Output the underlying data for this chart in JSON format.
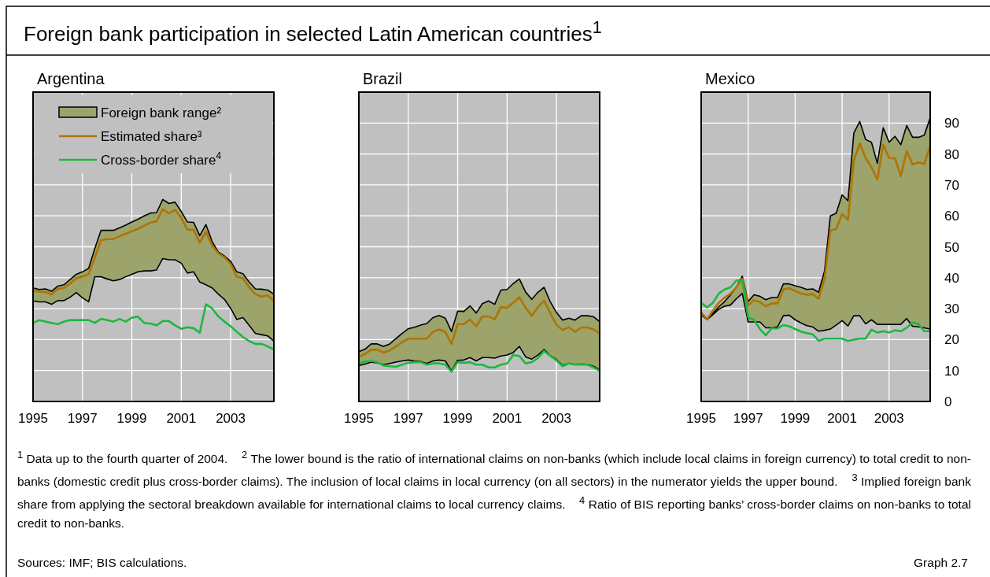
{
  "chart_data": [
    {
      "type": "other",
      "title": "Foreign bank participation in selected Latin American countries$^{1}$"
    },
    {
      "type": "line",
      "title": "Argentina",
      "x": [
        1995,
        1995.25,
        1995.5,
        1995.75,
        1996,
        1996.25,
        1996.5,
        1996.75,
        1997,
        1997.25,
        1997.5,
        1997.75,
        1998,
        1998.25,
        1998.5,
        1998.75,
        1999,
        1999.25,
        1999.5,
        1999.75,
        2000,
        2000.25,
        2000.5,
        2000.75,
        2001,
        2001.25,
        2001.5,
        2001.75,
        2002,
        2002.25,
        2002.5,
        2002.75,
        2003,
        2003.25,
        2003.5,
        2003.75,
        2004,
        2004.25,
        2004.5,
        2004.75
      ],
      "xlim": [
        1995,
        2004.75
      ],
      "xticks": [
        1995,
        1997,
        1999,
        2001,
        2003
      ],
      "ylim": [
        0,
        100
      ],
      "yticks": [
        0,
        10,
        20,
        30,
        40,
        50,
        60,
        70,
        80,
        90
      ],
      "tick_labels": "x",
      "grid": true,
      "legend": "top",
      "series": [
        {
          "type": "line",
          "name": "Foreign bank range²",
          "color": "#9ca46c",
          "values": [
            null,
            null,
            null,
            null,
            null,
            null,
            null,
            null,
            null,
            null,
            null,
            null,
            null,
            null,
            null,
            null,
            null,
            null,
            null,
            null,
            null,
            null,
            null,
            null,
            null,
            null,
            null,
            null,
            null,
            null,
            null,
            null,
            null,
            null,
            null,
            null,
            null,
            null,
            null,
            null
          ],
          "lower": [
            32.5,
            32.2,
            32.2,
            31.4,
            32.6,
            32.6,
            33.7,
            35.2,
            33.5,
            32.2,
            40.3,
            40.3,
            39.6,
            39,
            39.4,
            40.3,
            41.1,
            41.9,
            42.2,
            42.2,
            42.5,
            46.2,
            45.8,
            45.8,
            44.7,
            41.5,
            41.9,
            38.6,
            37.7,
            36.7,
            34.7,
            33,
            30.1,
            26.5,
            27.1,
            24.6,
            22,
            21.6,
            21.2,
            19.5
          ],
          "upper": [
            36.7,
            36.2,
            36.4,
            35.6,
            37.3,
            37.7,
            39.4,
            41.1,
            41.9,
            43,
            49.4,
            55.3,
            55.3,
            55.3,
            56.1,
            57,
            58,
            58.9,
            60,
            60.9,
            61,
            65.3,
            64,
            64.4,
            61.4,
            58,
            57.9,
            53.6,
            57.2,
            51.7,
            48.3,
            47,
            45.3,
            41.9,
            41.3,
            38.6,
            36.4,
            36.3,
            36,
            34.7
          ]
        },
        {
          "type": "line",
          "name": "Estimated share³",
          "color": "#b07400",
          "values": [
            35.8,
            35.5,
            35.4,
            34.6,
            36.4,
            36.7,
            38.1,
            39.8,
            40.4,
            41.1,
            46.6,
            52.1,
            52.5,
            52.5,
            53.4,
            54.2,
            55,
            55.8,
            56.8,
            57.8,
            58.2,
            62.1,
            60.8,
            61.9,
            59.3,
            55.5,
            55.5,
            51.3,
            54.8,
            50.4,
            47.9,
            46.6,
            44.5,
            40.3,
            39.8,
            36.9,
            34.7,
            33.9,
            34.3,
            32.5
          ]
        },
        {
          "type": "line",
          "name": "Cross-border share$^{4}$",
          "color": "#1db83e",
          "values": [
            25.4,
            26.3,
            25.8,
            25.4,
            25,
            25.8,
            26.3,
            26.3,
            26.3,
            26.3,
            25.4,
            26.7,
            26.3,
            25.8,
            26.7,
            25.8,
            27.1,
            27.4,
            25.4,
            25.2,
            24.6,
            26,
            26,
            24.6,
            23.5,
            24,
            23.7,
            22.2,
            31.4,
            30.1,
            27.5,
            25.8,
            24.3,
            22.5,
            20.8,
            19.5,
            18.6,
            18.6,
            17.8,
            16.8
          ]
        }
      ]
    },
    {
      "type": "line",
      "title": "Brazil",
      "x": [
        1995,
        1995.25,
        1995.5,
        1995.75,
        1996,
        1996.25,
        1996.5,
        1996.75,
        1997,
        1997.25,
        1997.5,
        1997.75,
        1998,
        1998.25,
        1998.5,
        1998.75,
        1999,
        1999.25,
        1999.5,
        1999.75,
        2000,
        2000.25,
        2000.5,
        2000.75,
        2001,
        2001.25,
        2001.5,
        2001.75,
        2002,
        2002.25,
        2002.5,
        2002.75,
        2003,
        2003.25,
        2003.5,
        2003.75,
        2004,
        2004.25,
        2004.5,
        2004.75
      ],
      "xlim": [
        1995,
        2004.75
      ],
      "xticks": [
        1995,
        1997,
        1999,
        2001,
        2003
      ],
      "ylim": [
        0,
        100
      ],
      "yticks": [
        0,
        10,
        20,
        30,
        40,
        50,
        60,
        70,
        80,
        90
      ],
      "tick_labels": "x",
      "grid": true,
      "series": [
        {
          "type": "line",
          "color": "#9ca46c",
          "values": [
            null,
            null,
            null,
            null,
            null,
            null,
            null,
            null,
            null,
            null,
            null,
            null,
            null,
            null,
            null,
            null,
            null,
            null,
            null,
            null,
            null,
            null,
            null,
            null,
            null,
            null,
            null,
            null,
            null,
            null,
            null,
            null,
            null,
            null,
            null,
            null,
            null,
            null,
            null,
            null
          ],
          "lower": [
            11.6,
            12.1,
            12.7,
            12.5,
            11.9,
            12.3,
            12.7,
            13.1,
            13.4,
            13.1,
            12.9,
            12.3,
            13.1,
            13.4,
            13.1,
            9.9,
            13.3,
            13.4,
            14.2,
            13.1,
            14.2,
            14.2,
            14,
            14.7,
            15,
            15.8,
            17.8,
            14.4,
            13.7,
            15,
            16.8,
            14.8,
            13.6,
            11.7,
            12.3,
            12,
            12.1,
            12,
            11.4,
            10.2
          ],
          "upper": [
            16.1,
            16.9,
            18.6,
            18.6,
            17.8,
            18.6,
            20.3,
            22,
            23.5,
            24,
            24.7,
            25.2,
            27.1,
            27.8,
            26.9,
            22.6,
            29.2,
            29.1,
            30.9,
            28.6,
            31.6,
            32.5,
            31.4,
            36,
            36.2,
            38.1,
            39.6,
            35.4,
            33,
            35.3,
            36.9,
            32.2,
            28.8,
            26.3,
            26.9,
            26.3,
            27.7,
            27.7,
            27.4,
            25.8
          ]
        },
        {
          "type": "line",
          "color": "#b07400",
          "values": [
            14.4,
            15.4,
            16.7,
            16.7,
            15.8,
            16.5,
            17.8,
            19.1,
            20.3,
            20.3,
            20.3,
            20.3,
            22.5,
            23.3,
            22.5,
            18.6,
            25,
            25,
            26.5,
            24.3,
            27.5,
            27.5,
            26.5,
            30.5,
            30.3,
            31.9,
            33.7,
            30.3,
            27.7,
            30.5,
            32.6,
            28.6,
            24.7,
            23.1,
            24,
            22.5,
            23.9,
            23.9,
            23.3,
            22
          ]
        },
        {
          "type": "line",
          "color": "#1db83e",
          "values": [
            12.3,
            12.9,
            13.1,
            12.7,
            11.6,
            11.4,
            11.2,
            11.9,
            12.5,
            12.7,
            12.7,
            11.9,
            12.3,
            12.3,
            11.9,
            9.6,
            12.7,
            12.5,
            12.7,
            11.9,
            11.9,
            11,
            11,
            11.9,
            12.3,
            15,
            14.7,
            12.3,
            12.7,
            14,
            16.3,
            14.7,
            13.3,
            11.4,
            12.3,
            11.9,
            11.9,
            11.9,
            11,
            9.9
          ]
        }
      ]
    },
    {
      "type": "line",
      "title": "Mexico",
      "x": [
        1995,
        1995.25,
        1995.5,
        1995.75,
        1996,
        1996.25,
        1996.5,
        1996.75,
        1997,
        1997.25,
        1997.5,
        1997.75,
        1998,
        1998.25,
        1998.5,
        1998.75,
        1999,
        1999.25,
        1999.5,
        1999.75,
        2000,
        2000.25,
        2000.5,
        2000.75,
        2001,
        2001.25,
        2001.5,
        2001.75,
        2002,
        2002.25,
        2002.5,
        2002.75,
        2003,
        2003.25,
        2003.5,
        2003.75,
        2004,
        2004.25,
        2004.5,
        2004.75
      ],
      "xlim": [
        1995,
        2004.75
      ],
      "xticks": [
        1995,
        1997,
        1999,
        2001,
        2003
      ],
      "ylim": [
        0,
        100
      ],
      "yticks": [
        0,
        10,
        20,
        30,
        40,
        50,
        60,
        70,
        80,
        90
      ],
      "grid": true,
      "series": [
        {
          "type": "line",
          "color": "#9ca46c",
          "values": [
            null,
            null,
            null,
            null,
            null,
            null,
            null,
            null,
            null,
            null,
            null,
            null,
            null,
            null,
            null,
            null,
            null,
            null,
            null,
            null,
            null,
            null,
            null,
            null,
            null,
            null,
            null,
            null,
            null,
            null,
            null,
            null,
            null,
            null,
            null,
            null,
            null,
            null,
            null,
            null
          ],
          "lower": [
            28.1,
            26.4,
            28.1,
            29.8,
            30.8,
            31.2,
            33.2,
            34.9,
            25.7,
            25.7,
            25.7,
            23.8,
            23.8,
            24.1,
            27.7,
            27.9,
            26.4,
            25.4,
            24.5,
            24.1,
            22.7,
            23,
            23.4,
            24.7,
            26.1,
            24.4,
            27.7,
            27.7,
            25.1,
            26.4,
            24.9,
            24.9,
            24.9,
            24.9,
            24.9,
            26.8,
            24.3,
            24.1,
            23.8,
            23.4
          ],
          "upper": [
            28.1,
            26.4,
            28.5,
            30.6,
            32.3,
            34.5,
            37,
            40.5,
            32.3,
            34.5,
            34,
            32.9,
            33.6,
            33.6,
            38,
            38,
            37.4,
            36.9,
            36.2,
            36.4,
            35.3,
            42.1,
            60,
            60.9,
            66.8,
            64.9,
            86.8,
            90.5,
            84.7,
            83.8,
            77,
            88.5,
            83.8,
            85.7,
            83,
            89.2,
            85.4,
            85.4,
            86.1,
            91.7
          ]
        },
        {
          "type": "line",
          "color": "#b07400",
          "values": [
            28.7,
            26.6,
            29.4,
            31.9,
            33.6,
            34.9,
            37,
            39.7,
            31.1,
            32.8,
            32.1,
            30.8,
            31.7,
            31.7,
            36.2,
            36.6,
            35.7,
            34.9,
            34.5,
            34.7,
            33.2,
            39.6,
            55.3,
            55.7,
            60.6,
            58.7,
            77.9,
            83.4,
            78.7,
            75.7,
            71.7,
            83,
            78.7,
            78.6,
            72.8,
            81,
            76.6,
            77.3,
            76.8,
            82.6
          ]
        },
        {
          "type": "line",
          "color": "#1db83e",
          "values": [
            31.9,
            30.4,
            31.9,
            34.9,
            36.2,
            36.9,
            39.1,
            39.1,
            27.2,
            26.4,
            23.4,
            21.4,
            23.6,
            23.6,
            24.7,
            24.3,
            23.4,
            22.6,
            22.1,
            21.7,
            19.6,
            20.3,
            20.3,
            20.3,
            20.3,
            19.6,
            20,
            20.3,
            20.3,
            23.2,
            22.3,
            22.7,
            22.3,
            23,
            22.7,
            23.8,
            25.5,
            25.1,
            22.7,
            22.7
          ]
        }
      ]
    },
    {
      "type": "other",
      "annotations": [
        "$^{1}$ Data up to the fourth quarter of 2004.",
        "$^{2}$ The lower bound is the ratio of international claims on non-banks (which include local claims in foreign currency) to total credit to non-banks (domestic credit plus cross-border claims). The inclusion of local claims in local currency (on all sectors) in the numerator yields the upper bound.",
        "$^{3}$ Implied foreign bank share from applying the sectoral breakdown available for international claims to local currency claims.",
        "$^{4}$ Ratio of BIS reporting banks’ cross-border claims on non-banks to total credit to non-banks.",
        "Sources: IMF; BIS calculations.",
        "Graph 2.7"
      ]
    }
  ]
}
